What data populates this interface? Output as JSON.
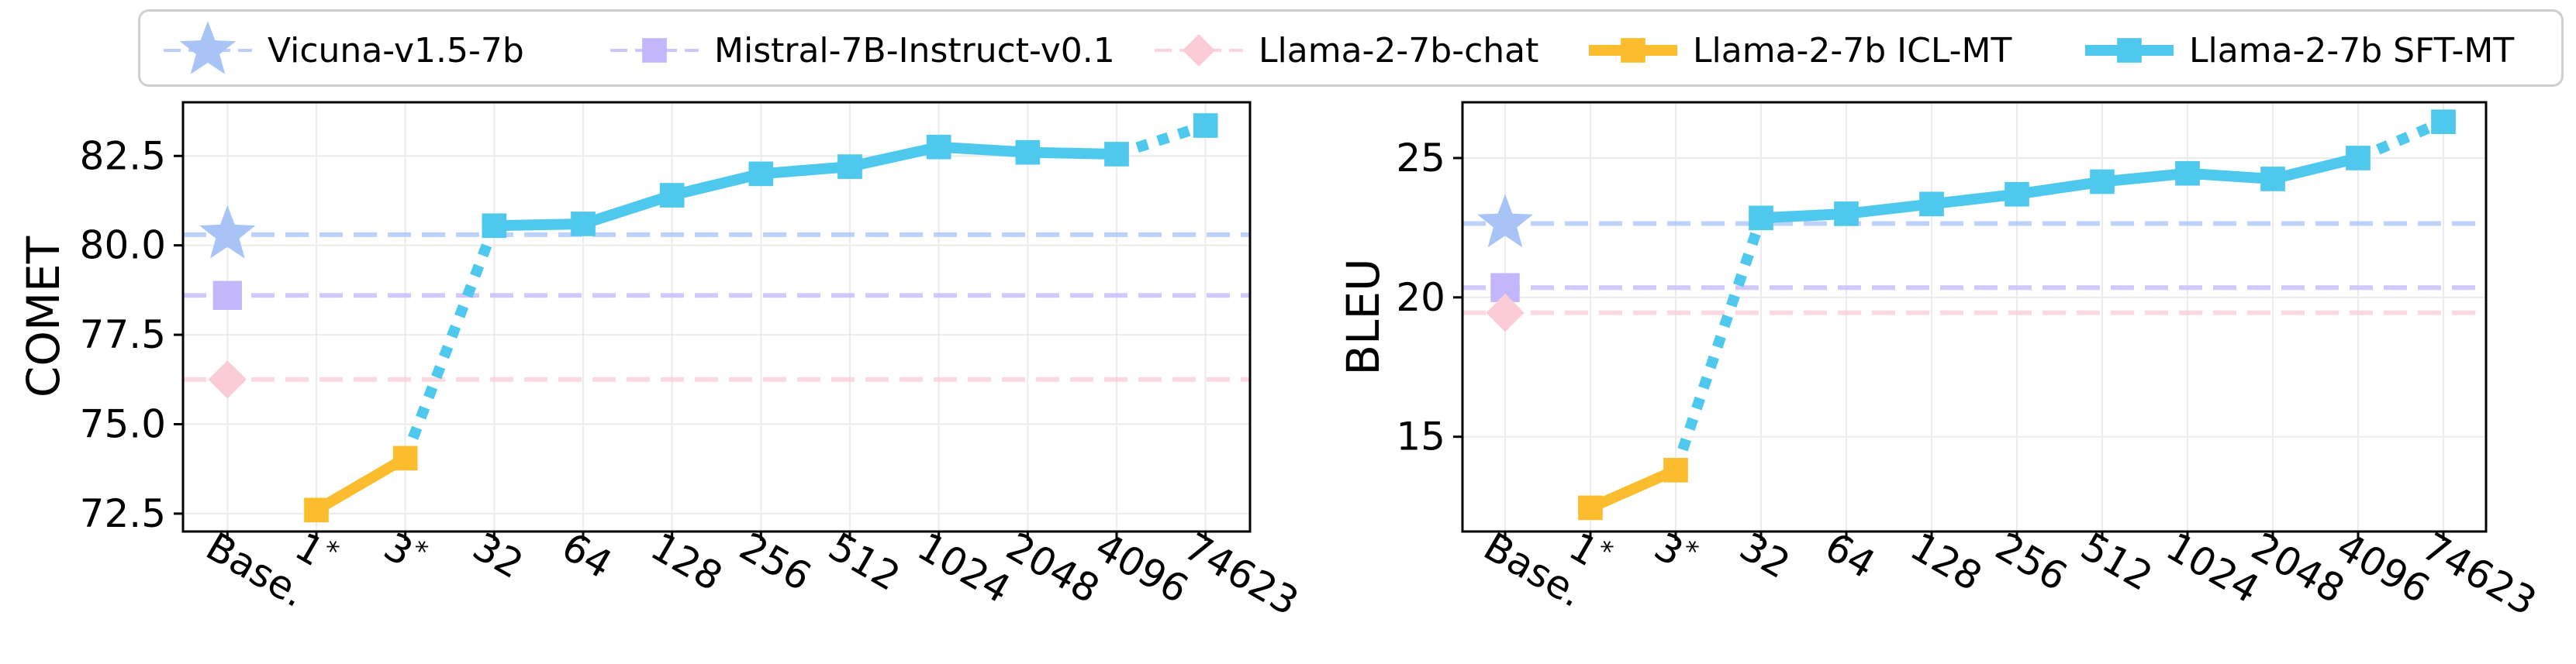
{
  "legend": [
    {
      "label": "Vicuna-v1.5-7b",
      "marker": "star",
      "color": "#a8c4f7"
    },
    {
      "label": "Mistral-7B-Instruct-v0.1",
      "marker": "square",
      "color": "#c3b6fb"
    },
    {
      "label": "Llama-2-7b-chat",
      "marker": "diamond",
      "color": "#fbcbd6"
    },
    {
      "label": "Llama-2-7b ICL-MT",
      "marker": "square",
      "color": "#fbbd2e"
    },
    {
      "label": "Llama-2-7b SFT-MT",
      "marker": "square",
      "color": "#4fc8ee"
    }
  ],
  "chart_data": [
    {
      "type": "line",
      "ylabel": "COMET",
      "xlabel": "",
      "categories": [
        "Base.",
        "1*",
        "3*",
        "32",
        "64",
        "128",
        "256",
        "512",
        "1024",
        "2048",
        "4096",
        "74623"
      ],
      "ylim": [
        72.0,
        84.0
      ],
      "yticks": [
        72.5,
        75.0,
        77.5,
        80.0,
        82.5
      ],
      "ytick_labels": [
        "72.5",
        "75.0",
        "77.5",
        "80.0",
        "82.5"
      ],
      "grid": true,
      "baselines": [
        {
          "name": "Vicuna-v1.5-7b",
          "value": 80.3,
          "marker": "star",
          "color": "#a8c4f7"
        },
        {
          "name": "Mistral-7B-Instruct-v0.1",
          "value": 78.6,
          "marker": "square",
          "color": "#c3b6fb"
        },
        {
          "name": "Llama-2-7b-chat",
          "value": 76.25,
          "marker": "diamond",
          "color": "#fbcbd6"
        }
      ],
      "series": [
        {
          "name": "Llama-2-7b ICL-MT",
          "color": "#fbbd2e",
          "x": [
            "1*",
            "3*"
          ],
          "values": [
            72.6,
            74.05
          ]
        },
        {
          "name": "Llama-2-7b SFT-MT",
          "color": "#4fc8ee",
          "x": [
            "32",
            "64",
            "128",
            "256",
            "512",
            "1024",
            "2048",
            "4096",
            "74623"
          ],
          "values": [
            80.55,
            80.6,
            81.4,
            82.0,
            82.2,
            82.75,
            82.6,
            82.55,
            83.35
          ]
        }
      ]
    },
    {
      "type": "line",
      "ylabel": "BLEU",
      "xlabel": "",
      "categories": [
        "Base.",
        "1*",
        "3*",
        "32",
        "64",
        "128",
        "256",
        "512",
        "1024",
        "2048",
        "4096",
        "74623"
      ],
      "ylim": [
        11.6,
        27.0
      ],
      "yticks": [
        15,
        20,
        25
      ],
      "ytick_labels": [
        "15",
        "20",
        "25"
      ],
      "grid": true,
      "baselines": [
        {
          "name": "Vicuna-v1.5-7b",
          "value": 22.65,
          "marker": "star",
          "color": "#a8c4f7"
        },
        {
          "name": "Mistral-7B-Instruct-v0.1",
          "value": 20.35,
          "marker": "square",
          "color": "#c3b6fb"
        },
        {
          "name": "Llama-2-7b-chat",
          "value": 19.45,
          "marker": "diamond",
          "color": "#fbcbd6"
        }
      ],
      "series": [
        {
          "name": "Llama-2-7b ICL-MT",
          "color": "#fbbd2e",
          "x": [
            "1*",
            "3*"
          ],
          "values": [
            12.45,
            13.8
          ]
        },
        {
          "name": "Llama-2-7b SFT-MT",
          "color": "#4fc8ee",
          "x": [
            "32",
            "64",
            "128",
            "256",
            "512",
            "1024",
            "2048",
            "4096",
            "74623"
          ],
          "values": [
            22.85,
            23.0,
            23.35,
            23.7,
            24.15,
            24.45,
            24.25,
            25.0,
            26.3
          ]
        }
      ]
    }
  ]
}
